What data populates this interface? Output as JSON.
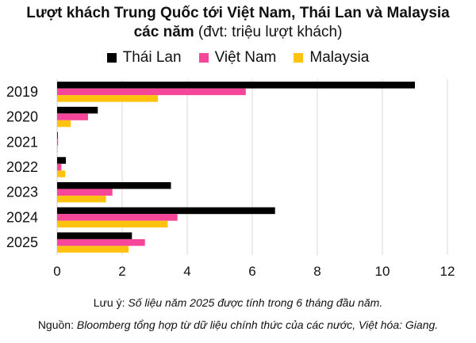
{
  "chart_data": {
    "type": "bar",
    "orientation": "horizontal",
    "title": "Lượt khách Trung Quốc tới Việt Nam, Thái Lan và Malaysia",
    "subtitle_bold": "các năm",
    "subtitle_rest": " (đvt: triệu lượt khách)",
    "categories": [
      "2019",
      "2020",
      "2021",
      "2022",
      "2023",
      "2024",
      "2025"
    ],
    "series": [
      {
        "name": "Thái Lan",
        "color": "#000000",
        "values": [
          11.0,
          1.25,
          0.02,
          0.27,
          3.5,
          6.7,
          2.3
        ]
      },
      {
        "name": "Việt Nam",
        "color": "#f5469a",
        "values": [
          5.8,
          0.95,
          0.03,
          0.13,
          1.7,
          3.7,
          2.7
        ]
      },
      {
        "name": "Malaysia",
        "color": "#ffc20e",
        "values": [
          3.1,
          0.42,
          0.01,
          0.25,
          1.5,
          3.4,
          2.2
        ]
      }
    ],
    "xlim": [
      0,
      12
    ],
    "xticks": [
      "0",
      "2",
      "4",
      "6",
      "8",
      "10",
      "12"
    ],
    "grid": true,
    "legend_position": "top"
  },
  "note_label": "Lưu ý: ",
  "note_text": "Số liệu năm 2025 được tính trong 6 tháng đầu năm.",
  "source_label": "Nguồn: ",
  "source_text": "Bloomberg tổng hợp từ dữ liệu chính thức của các nước, Việt hóa: Giang."
}
